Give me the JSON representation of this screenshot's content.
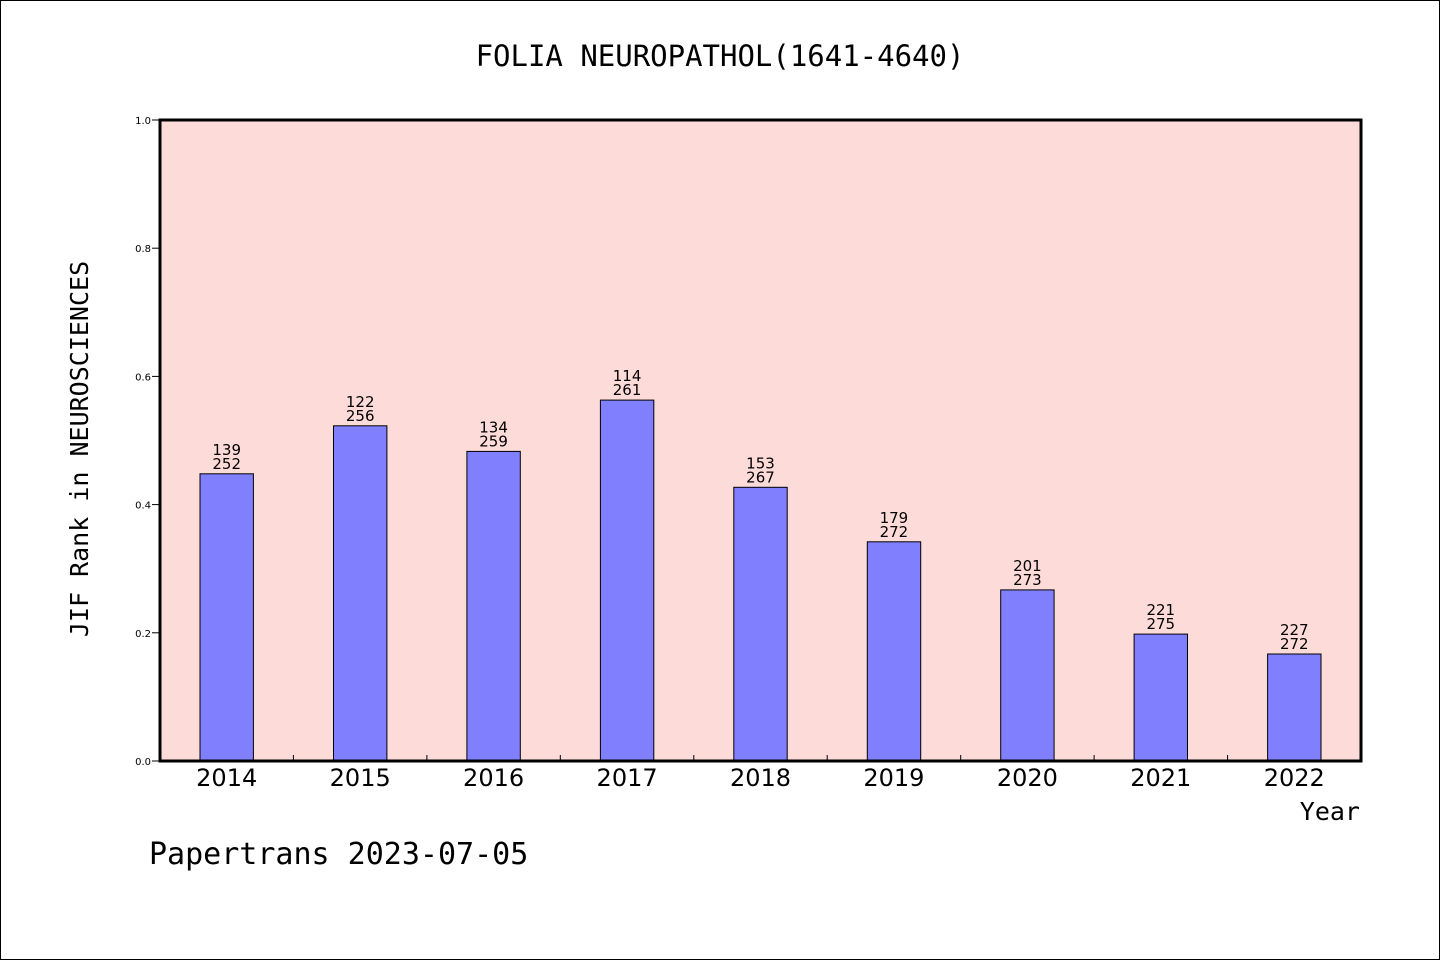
{
  "chart_data": {
    "type": "bar",
    "title": "FOLIA NEUROPATHOL(1641-4640)",
    "xlabel": "Year",
    "ylabel": "JIF Rank in NEUROSCIENCES",
    "categories": [
      "2014",
      "2015",
      "2016",
      "2017",
      "2018",
      "2019",
      "2020",
      "2021",
      "2022"
    ],
    "values": [
      0.448,
      0.523,
      0.483,
      0.563,
      0.427,
      0.342,
      0.267,
      0.198,
      0.167
    ],
    "ranks": [
      "139",
      "122",
      "134",
      "114",
      "153",
      "179",
      "201",
      "221",
      "227"
    ],
    "totals": [
      "252",
      "256",
      "259",
      "261",
      "267",
      "272",
      "273",
      "275",
      "272"
    ],
    "ylim": [
      0,
      1.0
    ],
    "yticks": [
      "0.0",
      "0.2",
      "0.4",
      "0.6",
      "0.8",
      "1.0"
    ],
    "grid": false,
    "colors": {
      "plot_background": "#fddbd8",
      "bar_fill": "#8080ff",
      "bar_stroke": "#000000"
    }
  },
  "footer": {
    "text": "Papertrans 2023-07-05"
  }
}
